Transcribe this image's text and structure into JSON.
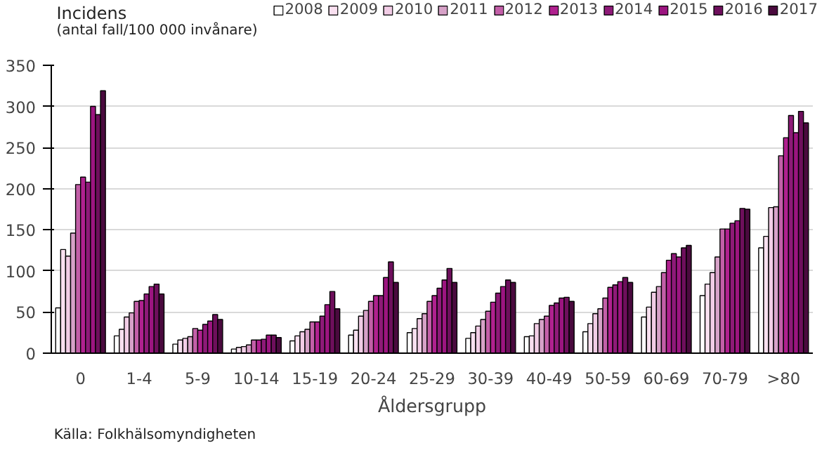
{
  "chart_data": {
    "type": "bar",
    "ylabel": "Incidens\n(antal fall/100 000 invånare)",
    "xlabel": "Åldersgrupp",
    "annotations": [
      "Källa: Folkhälsomyndigheten"
    ],
    "categories": [
      "0",
      "1-4",
      "5-9",
      "10-14",
      "15-19",
      "20-24",
      "25-29",
      "30-39",
      "40-49",
      "50-59",
      "60-69",
      "70-79",
      ">80"
    ],
    "ylim": [
      0,
      350
    ],
    "yticks": [
      0,
      50,
      100,
      150,
      200,
      250,
      300,
      350
    ],
    "grid": "y",
    "legend": "top",
    "series": [
      {
        "name": "2008",
        "color": "#ffffff",
        "values": [
          55,
          21,
          11,
          5,
          15,
          22,
          25,
          18,
          20,
          26,
          44,
          70,
          128
        ]
      },
      {
        "name": "2009",
        "color": "#f9e0f0",
        "values": [
          126,
          29,
          16,
          7,
          21,
          28,
          30,
          25,
          21,
          36,
          56,
          84,
          142
        ]
      },
      {
        "name": "2010",
        "color": "#f2cde6",
        "values": [
          118,
          44,
          18,
          8,
          26,
          45,
          42,
          33,
          36,
          48,
          74,
          98,
          177
        ]
      },
      {
        "name": "2011",
        "color": "#d7a2c8",
        "values": [
          146,
          49,
          20,
          10,
          29,
          52,
          48,
          41,
          41,
          54,
          81,
          117,
          178
        ]
      },
      {
        "name": "2012",
        "color": "#c35fa8",
        "values": [
          205,
          63,
          30,
          16,
          38,
          63,
          63,
          51,
          45,
          67,
          98,
          151,
          240
        ]
      },
      {
        "name": "2013",
        "color": "#b0218f",
        "values": [
          214,
          64,
          28,
          16,
          38,
          70,
          70,
          62,
          58,
          80,
          113,
          151,
          262
        ]
      },
      {
        "name": "2014",
        "color": "#8e1a78",
        "values": [
          208,
          72,
          35,
          17,
          45,
          70,
          79,
          73,
          61,
          83,
          121,
          158,
          289
        ]
      },
      {
        "name": "2015",
        "color": "#9c1580",
        "values": [
          300,
          81,
          39,
          22,
          59,
          92,
          89,
          81,
          67,
          87,
          117,
          161,
          268
        ]
      },
      {
        "name": "2016",
        "color": "#6e0f5c",
        "values": [
          290,
          84,
          47,
          22,
          75,
          111,
          103,
          89,
          68,
          92,
          128,
          176,
          294
        ]
      },
      {
        "name": "2017",
        "color": "#4a0a3e",
        "values": [
          319,
          72,
          41,
          19,
          54,
          86,
          86,
          86,
          63,
          86,
          131,
          175,
          280
        ]
      }
    ]
  }
}
